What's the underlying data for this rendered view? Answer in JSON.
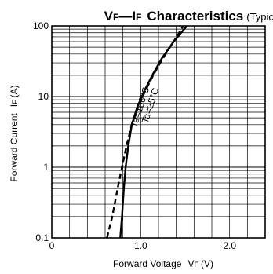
{
  "chart_data": {
    "type": "line",
    "title": {
      "v": "V",
      "v_sub": "F",
      "dash": "—",
      "i": "I",
      "i_sub": "F",
      "main": "Characteristics",
      "suffix": "(Typical)"
    },
    "xlabel": {
      "text": "Forward Voltage",
      "v": "V",
      "sub": "F",
      "unit": "(V)"
    },
    "ylabel": {
      "text": "Forward Current",
      "i": "I",
      "sub": "F",
      "unit": "(A)"
    },
    "x_ticks": [
      {
        "value": 0,
        "label": "0"
      },
      {
        "value": 1.0,
        "label": "1.0"
      },
      {
        "value": 2.0,
        "label": "2.0"
      }
    ],
    "y_ticks": [
      {
        "value": 0.1,
        "label": "0.1"
      },
      {
        "value": 1,
        "label": "1"
      },
      {
        "value": 10,
        "label": "10"
      },
      {
        "value": 100,
        "label": "100"
      }
    ],
    "xlim": [
      0,
      2.4
    ],
    "ylim": [
      0.1,
      100
    ],
    "yscale": "log",
    "grid": true,
    "series": [
      {
        "name": "Ta=100°C",
        "style": "dashed",
        "x": [
          0.62,
          0.68,
          0.74,
          0.79,
          0.84,
          0.9,
          0.97,
          1.05,
          1.14,
          1.25,
          1.37,
          1.48
        ],
        "y": [
          0.1,
          0.2,
          0.5,
          1.0,
          2.0,
          4.0,
          7.0,
          12.0,
          20.0,
          35.0,
          60.0,
          100.0
        ]
      },
      {
        "name": "Ta=25°C",
        "style": "solid",
        "x": [
          0.77,
          0.79,
          0.81,
          0.83,
          0.86,
          0.9,
          0.96,
          1.04,
          1.13,
          1.24,
          1.37,
          1.52
        ],
        "y": [
          0.1,
          0.2,
          0.5,
          1.0,
          2.0,
          4.0,
          7.0,
          12.0,
          20.0,
          35.0,
          60.0,
          100.0
        ]
      }
    ]
  }
}
